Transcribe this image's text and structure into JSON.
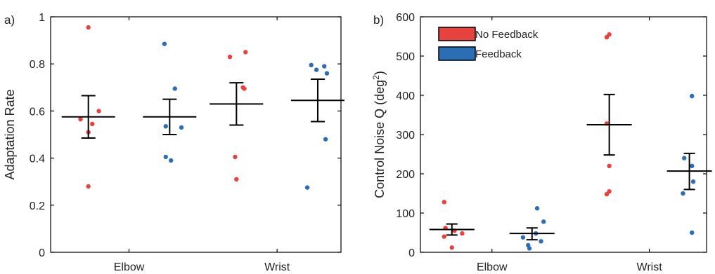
{
  "colors": {
    "no_feedback": "#e8423f",
    "feedback": "#2a6fb5",
    "axis": "#000000"
  },
  "chart_data": [
    {
      "type": "scatter",
      "panel_label": "a)",
      "title": "",
      "xlabel": "",
      "ylabel": "Adaptation Rate",
      "categories": [
        "Elbow",
        "Wrist"
      ],
      "ylim": [
        0,
        1
      ],
      "yticks": [
        "0",
        "0.2",
        "0.4",
        "0.6",
        "0.8",
        "1"
      ],
      "ytick_values": [
        0,
        0.2,
        0.4,
        0.6,
        0.8,
        1
      ],
      "grid": false,
      "legend": false,
      "series": [
        {
          "name": "No Feedback",
          "points": [
            {
              "category": "Elbow",
              "offset": 0.0,
              "y": 0.955
            },
            {
              "category": "Elbow",
              "offset": -0.06,
              "y": 0.565
            },
            {
              "category": "Elbow",
              "offset": 0.0,
              "y": 0.51
            },
            {
              "category": "Elbow",
              "offset": 0.03,
              "y": 0.545
            },
            {
              "category": "Elbow",
              "offset": 0.08,
              "y": 0.6
            },
            {
              "category": "Elbow",
              "offset": 0.0,
              "y": 0.28
            },
            {
              "category": "Wrist",
              "offset": -0.05,
              "y": 0.83
            },
            {
              "category": "Wrist",
              "offset": 0.07,
              "y": 0.85
            },
            {
              "category": "Wrist",
              "offset": 0.05,
              "y": 0.7
            },
            {
              "category": "Wrist",
              "offset": 0.06,
              "y": 0.695
            },
            {
              "category": "Wrist",
              "offset": -0.01,
              "y": 0.405
            },
            {
              "category": "Wrist",
              "offset": 0.0,
              "y": 0.31
            }
          ],
          "summary": [
            {
              "category": "Elbow",
              "mean": 0.575,
              "upper": 0.665,
              "lower": 0.485
            },
            {
              "category": "Wrist",
              "mean": 0.63,
              "upper": 0.72,
              "lower": 0.54
            }
          ]
        },
        {
          "name": "Feedback",
          "points": [
            {
              "category": "Elbow",
              "offset": -0.04,
              "y": 0.885
            },
            {
              "category": "Elbow",
              "offset": 0.04,
              "y": 0.695
            },
            {
              "category": "Elbow",
              "offset": -0.03,
              "y": 0.535
            },
            {
              "category": "Elbow",
              "offset": 0.09,
              "y": 0.53
            },
            {
              "category": "Elbow",
              "offset": -0.03,
              "y": 0.405
            },
            {
              "category": "Elbow",
              "offset": 0.01,
              "y": 0.39
            },
            {
              "category": "Wrist",
              "offset": -0.05,
              "y": 0.795
            },
            {
              "category": "Wrist",
              "offset": -0.01,
              "y": 0.775
            },
            {
              "category": "Wrist",
              "offset": 0.05,
              "y": 0.79
            },
            {
              "category": "Wrist",
              "offset": 0.07,
              "y": 0.76
            },
            {
              "category": "Wrist",
              "offset": 0.06,
              "y": 0.48
            },
            {
              "category": "Wrist",
              "offset": -0.08,
              "y": 0.275
            }
          ],
          "summary": [
            {
              "category": "Elbow",
              "mean": 0.575,
              "upper": 0.65,
              "lower": 0.5
            },
            {
              "category": "Wrist",
              "mean": 0.645,
              "upper": 0.735,
              "lower": 0.555
            }
          ]
        }
      ]
    },
    {
      "type": "scatter",
      "panel_label": "b)",
      "title": "",
      "xlabel": "",
      "ylabel": "Control Noise Q (deg",
      "ylabel_sup": "2",
      "ylabel_end": ")",
      "categories": [
        "Elbow",
        "Wrist"
      ],
      "ylim": [
        0,
        600
      ],
      "yticks": [
        "0",
        "100",
        "200",
        "300",
        "400",
        "500",
        "600"
      ],
      "ytick_values": [
        0,
        100,
        200,
        300,
        400,
        500,
        600
      ],
      "grid": false,
      "legend": "top-left",
      "series": [
        {
          "name": "No Feedback",
          "points": [
            {
              "category": "Elbow",
              "offset": -0.06,
              "y": 128
            },
            {
              "category": "Elbow",
              "offset": -0.05,
              "y": 62
            },
            {
              "category": "Elbow",
              "offset": 0.08,
              "y": 48
            },
            {
              "category": "Elbow",
              "offset": -0.06,
              "y": 40
            },
            {
              "category": "Elbow",
              "offset": 0.02,
              "y": 55
            },
            {
              "category": "Elbow",
              "offset": 0.0,
              "y": 12
            },
            {
              "category": "Wrist",
              "offset": 0.0,
              "y": 555
            },
            {
              "category": "Wrist",
              "offset": -0.02,
              "y": 548
            },
            {
              "category": "Wrist",
              "offset": -0.02,
              "y": 328
            },
            {
              "category": "Wrist",
              "offset": 0.0,
              "y": 220
            },
            {
              "category": "Wrist",
              "offset": 0.0,
              "y": 155
            },
            {
              "category": "Wrist",
              "offset": -0.02,
              "y": 148
            }
          ],
          "summary": [
            {
              "category": "Elbow",
              "mean": 58,
              "upper": 72,
              "lower": 44
            },
            {
              "category": "Wrist",
              "mean": 325,
              "upper": 402,
              "lower": 248
            }
          ]
        },
        {
          "name": "Feedback",
          "points": [
            {
              "category": "Elbow",
              "offset": 0.04,
              "y": 112
            },
            {
              "category": "Elbow",
              "offset": 0.09,
              "y": 78
            },
            {
              "category": "Elbow",
              "offset": 0.03,
              "y": 48
            },
            {
              "category": "Elbow",
              "offset": -0.07,
              "y": 38
            },
            {
              "category": "Elbow",
              "offset": 0.07,
              "y": 28
            },
            {
              "category": "Elbow",
              "offset": -0.03,
              "y": 18
            },
            {
              "category": "Elbow",
              "offset": -0.02,
              "y": 10
            },
            {
              "category": "Wrist",
              "offset": 0.02,
              "y": 398
            },
            {
              "category": "Wrist",
              "offset": -0.04,
              "y": 240
            },
            {
              "category": "Wrist",
              "offset": 0.02,
              "y": 220
            },
            {
              "category": "Wrist",
              "offset": 0.03,
              "y": 180
            },
            {
              "category": "Wrist",
              "offset": -0.05,
              "y": 150
            },
            {
              "category": "Wrist",
              "offset": 0.02,
              "y": 50
            }
          ],
          "summary": [
            {
              "category": "Elbow",
              "mean": 48,
              "upper": 62,
              "lower": 32
            },
            {
              "category": "Wrist",
              "mean": 207,
              "upper": 252,
              "lower": 160
            }
          ]
        }
      ]
    }
  ]
}
